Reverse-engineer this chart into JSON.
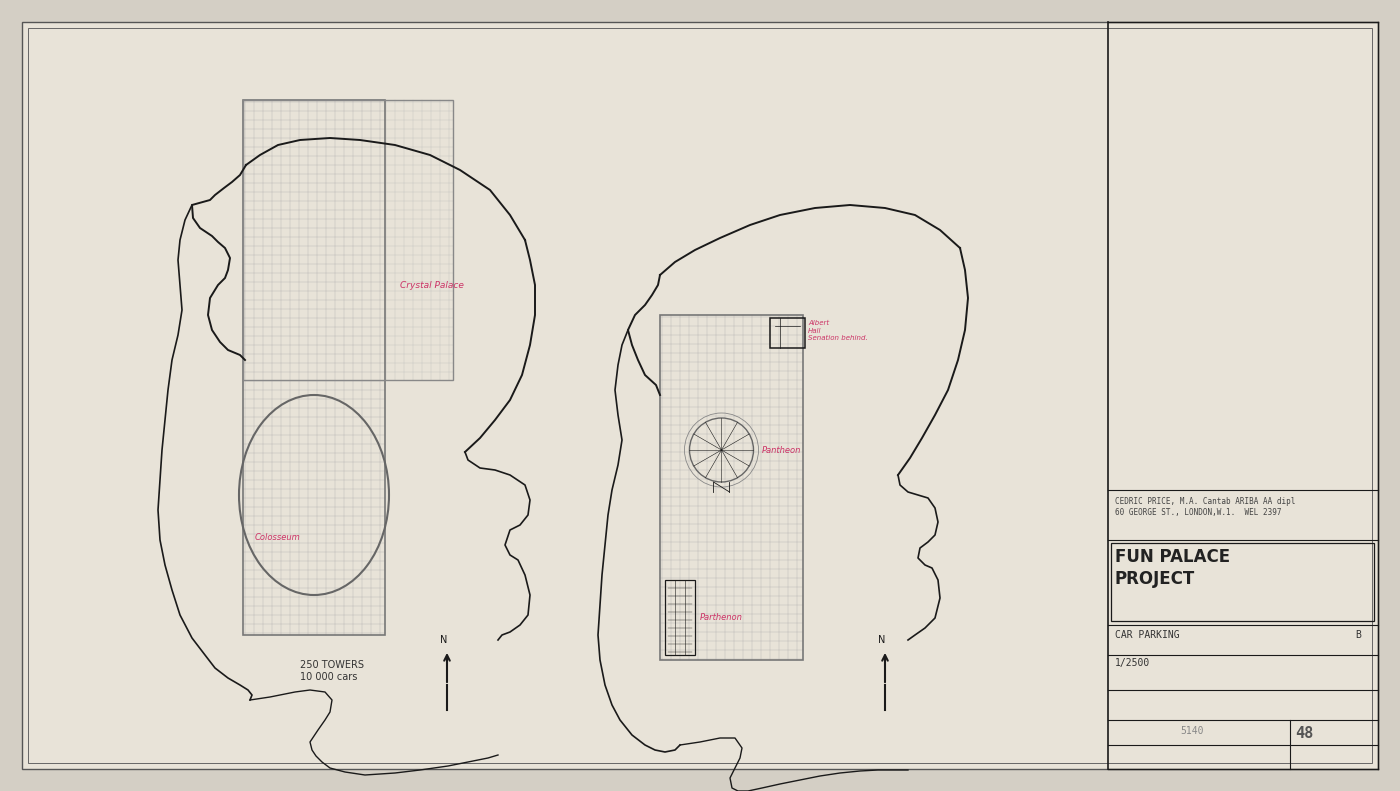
{
  "bg_color": "#d4cfc5",
  "paper_color": "#e8e3d8",
  "line_color": "#1a1a1a",
  "grid_color": "#999990",
  "pink_color": "#cc3366",
  "title_color": "#222222",
  "border_color": "#444444",
  "title": "FUN PALACE\nPROJECT",
  "subtitle1": "CAR PARKING",
  "subtitle2": "B",
  "subtitle3": "1/2500",
  "stamp_line1": "CEDRIC PRICE, M.A. Cantab ARIBA AA dipl",
  "stamp_line2": "60 GEORGE ST., LONDON,W.1.  WEL 2397",
  "sheet_number": "48",
  "left_label_line1": "250 TOWERS",
  "left_label_line2": "10 000 cars",
  "label_crystal": "Crystal Palace",
  "label_colosseum": "Colosseum",
  "label_albert_hall": "Albert\nHall\nSenation behind.",
  "label_pantheon": "Pantheon",
  "label_parthenon": "Parthenon"
}
